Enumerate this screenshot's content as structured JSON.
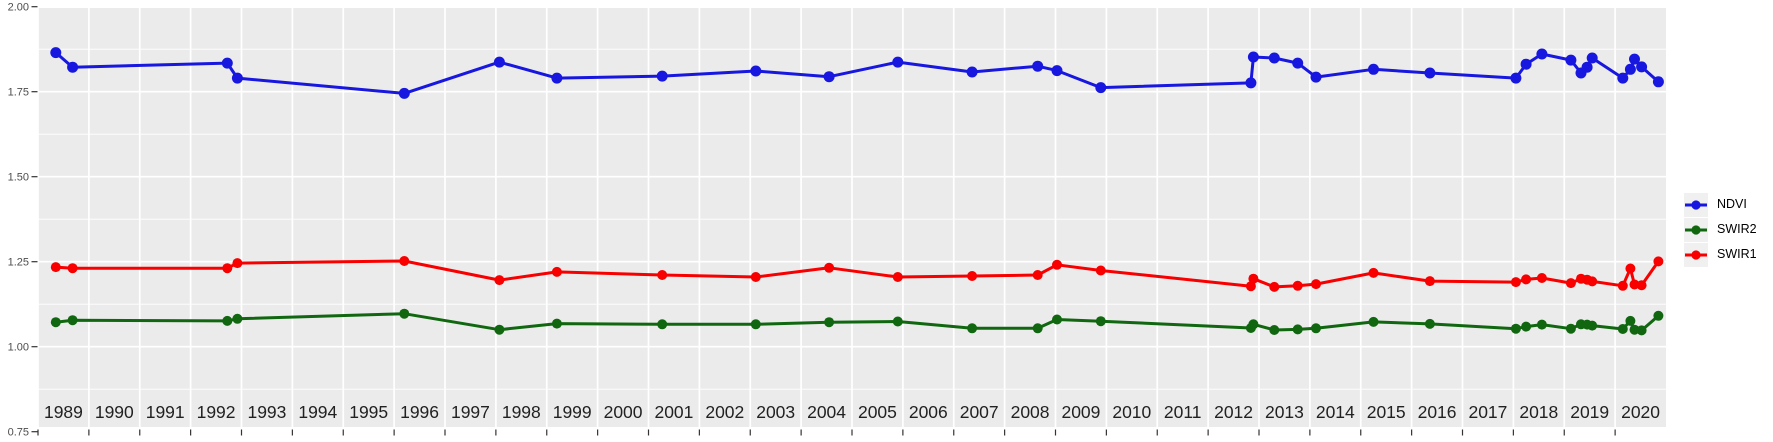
{
  "chart_data": {
    "type": "line",
    "title": "",
    "xlabel": "",
    "ylabel": "",
    "x_unit": "decimal year",
    "x": [
      1989.35,
      1989.68,
      1992.72,
      1992.92,
      1996.2,
      1998.07,
      1999.2,
      2001.27,
      2003.11,
      2004.55,
      2005.9,
      2007.36,
      2008.65,
      2009.03,
      2009.89,
      2012.84,
      2012.89,
      2013.3,
      2013.76,
      2014.12,
      2015.25,
      2016.36,
      2018.05,
      2018.25,
      2018.56,
      2019.13,
      2019.33,
      2019.45,
      2019.55,
      2020.15,
      2020.3,
      2020.38,
      2020.52,
      2020.85
    ],
    "series": [
      {
        "name": "NDVI",
        "color": "#1717E0",
        "values": [
          1.865,
          1.822,
          1.834,
          1.79,
          1.745,
          1.837,
          1.79,
          1.796,
          1.811,
          1.794,
          1.837,
          1.808,
          1.825,
          1.812,
          1.762,
          1.776,
          1.852,
          1.849,
          1.834,
          1.793,
          1.816,
          1.805,
          1.79,
          1.831,
          1.861,
          1.843,
          1.805,
          1.822,
          1.849,
          1.79,
          1.816,
          1.846,
          1.823,
          1.779
        ]
      },
      {
        "name": "SWIR2",
        "color": "#106710",
        "values": [
          1.072,
          1.078,
          1.076,
          1.082,
          1.097,
          1.05,
          1.068,
          1.066,
          1.066,
          1.072,
          1.074,
          1.054,
          1.054,
          1.08,
          1.075,
          1.055,
          1.066,
          1.049,
          1.051,
          1.054,
          1.073,
          1.067,
          1.053,
          1.059,
          1.065,
          1.053,
          1.066,
          1.065,
          1.062,
          1.052,
          1.076,
          1.05,
          1.048,
          1.091
        ]
      },
      {
        "name": "SWIR1",
        "color": "#F80000",
        "values": [
          1.234,
          1.231,
          1.231,
          1.246,
          1.252,
          1.196,
          1.22,
          1.211,
          1.205,
          1.232,
          1.205,
          1.208,
          1.211,
          1.241,
          1.224,
          1.178,
          1.2,
          1.176,
          1.179,
          1.184,
          1.217,
          1.193,
          1.19,
          1.198,
          1.202,
          1.187,
          1.2,
          1.197,
          1.192,
          1.179,
          1.23,
          1.183,
          1.181,
          1.251
        ]
      }
    ],
    "x_axis": {
      "tick_years": [
        1989,
        1990,
        1991,
        1992,
        1993,
        1994,
        1995,
        1996,
        1997,
        1998,
        1999,
        2000,
        2001,
        2002,
        2003,
        2004,
        2005,
        2006,
        2007,
        2008,
        2009,
        2010,
        2011,
        2012,
        2013,
        2014,
        2015,
        2016,
        2017,
        2018,
        2019,
        2020
      ],
      "labels": [
        "1989",
        "1990",
        "1991",
        "1992",
        "1993",
        "1994",
        "1995",
        "1996",
        "1997",
        "1998",
        "1999",
        "2000",
        "2001",
        "2002",
        "2003",
        "2004",
        "2005",
        "2006",
        "2007",
        "2008",
        "2009",
        "2010",
        "2011",
        "2012",
        "2013",
        "2014",
        "2015",
        "2016",
        "2017",
        "2018",
        "2019",
        "2020"
      ],
      "range": [
        1989.0,
        2021.0
      ]
    },
    "y_axis": {
      "ticks": [
        0.75,
        1.0,
        1.25,
        1.5,
        1.75,
        2.0
      ],
      "labels": [
        "0.75",
        "1.00",
        "1.25",
        "1.50",
        "1.75",
        "2.00"
      ],
      "minor_ticks": [
        0.875,
        1.125,
        1.375,
        1.625,
        1.875
      ],
      "range": [
        0.75,
        2.0
      ]
    },
    "legend": {
      "position": "right",
      "entries": [
        "NDVI",
        "SWIR2",
        "SWIR1"
      ]
    },
    "grid": "on",
    "style": {
      "panel_bg": "#EBEBEB",
      "grid_color": "#FFFFFF",
      "x_text_color": "#212121",
      "y_text_color": "#4D4D4D",
      "tick_color": "#333333",
      "legend_key_bg": "#F0F0F0"
    }
  }
}
